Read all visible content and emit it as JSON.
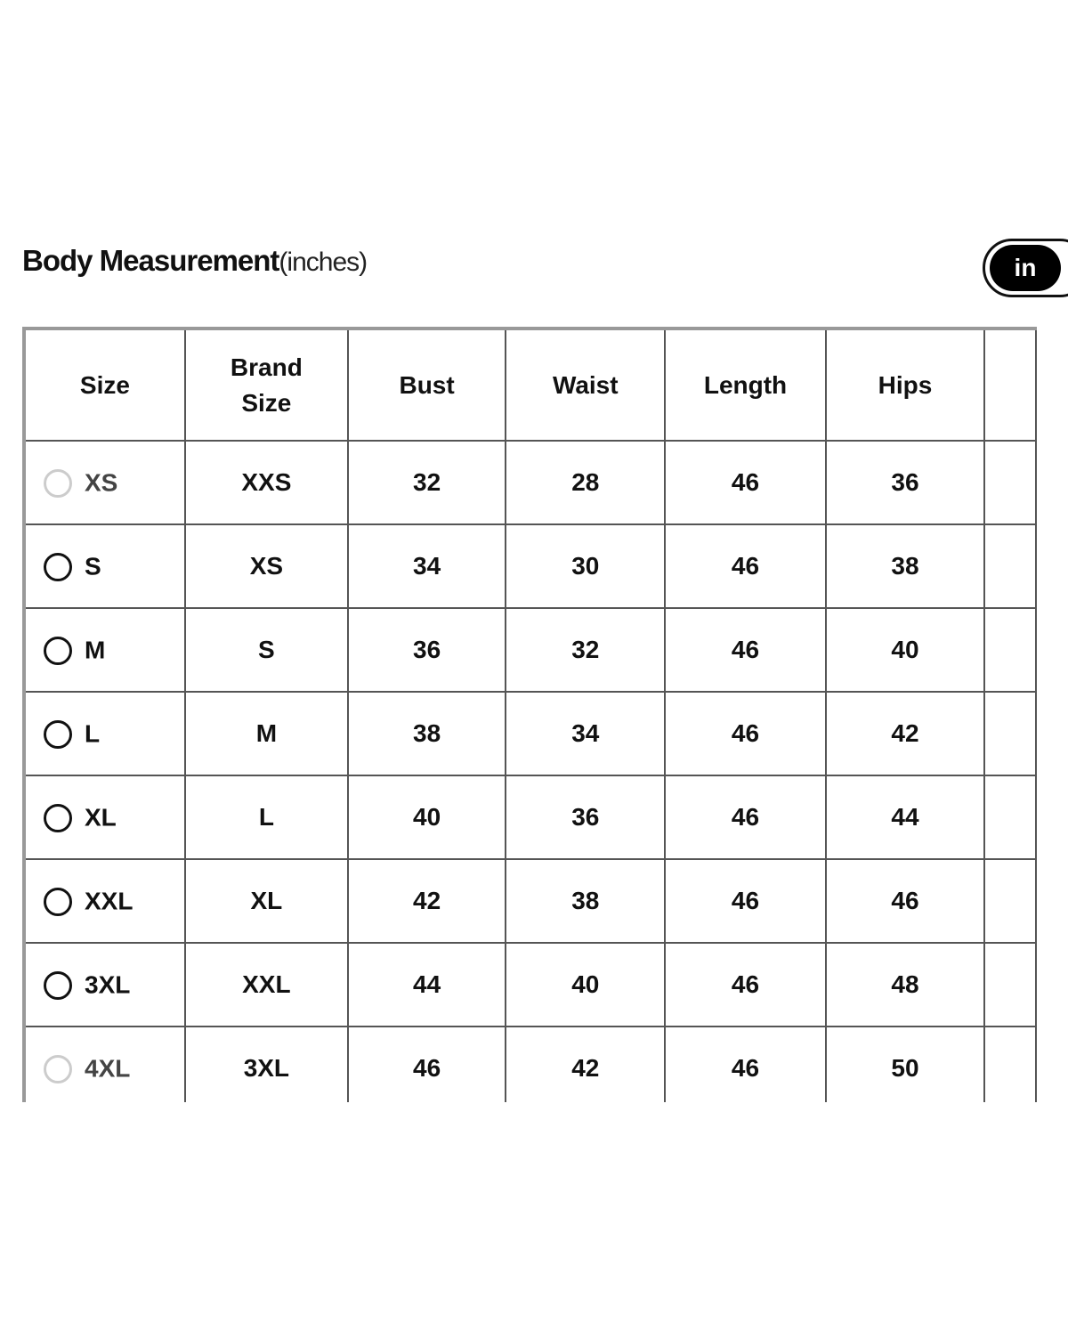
{
  "header": {
    "title": "Body Measurement",
    "unit_note": "(inches)",
    "unit_toggle": {
      "selected": "in"
    }
  },
  "table": {
    "columns": [
      "Size",
      "Brand Size",
      "Bust",
      "Waist",
      "Length",
      "Hips",
      ""
    ],
    "rows": [
      {
        "size": "XS",
        "brand": "XXS",
        "bust": "32",
        "waist": "28",
        "length": "46",
        "hips": "36",
        "disabled": true
      },
      {
        "size": "S",
        "brand": "XS",
        "bust": "34",
        "waist": "30",
        "length": "46",
        "hips": "38",
        "disabled": false
      },
      {
        "size": "M",
        "brand": "S",
        "bust": "36",
        "waist": "32",
        "length": "46",
        "hips": "40",
        "disabled": false
      },
      {
        "size": "L",
        "brand": "M",
        "bust": "38",
        "waist": "34",
        "length": "46",
        "hips": "42",
        "disabled": false
      },
      {
        "size": "XL",
        "brand": "L",
        "bust": "40",
        "waist": "36",
        "length": "46",
        "hips": "44",
        "disabled": false
      },
      {
        "size": "XXL",
        "brand": "XL",
        "bust": "42",
        "waist": "38",
        "length": "46",
        "hips": "46",
        "disabled": false
      },
      {
        "size": "3XL",
        "brand": "XXL",
        "bust": "44",
        "waist": "40",
        "length": "46",
        "hips": "48",
        "disabled": false
      },
      {
        "size": "4XL",
        "brand": "3XL",
        "bust": "46",
        "waist": "42",
        "length": "46",
        "hips": "50",
        "disabled": true
      }
    ]
  }
}
